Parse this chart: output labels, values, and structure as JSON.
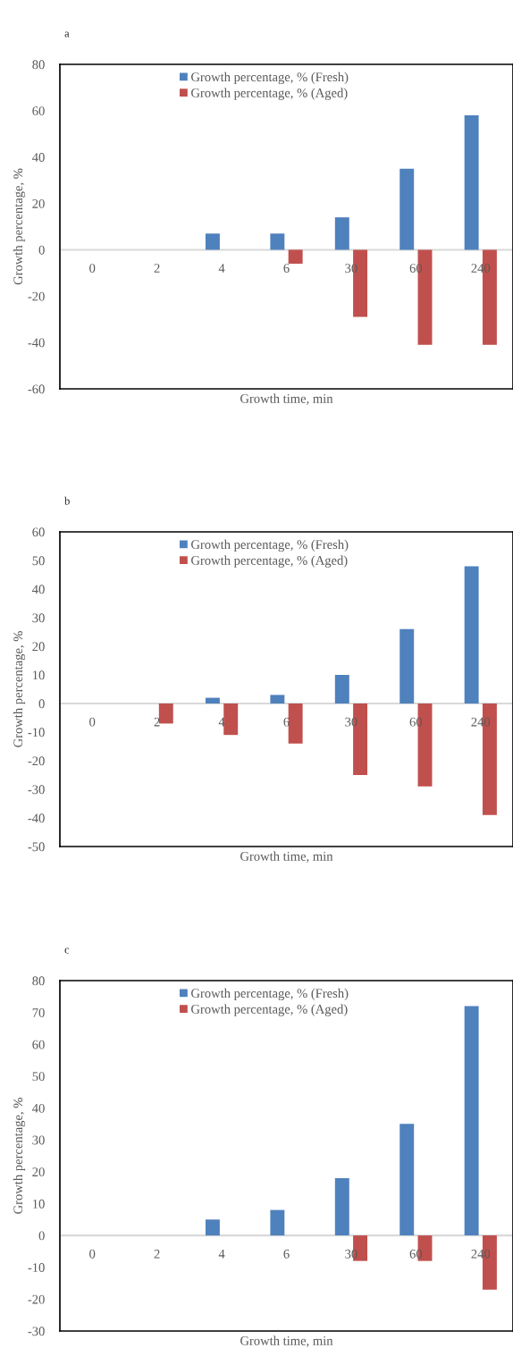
{
  "chart_data": [
    {
      "type": "bar",
      "title": "a",
      "xlabel": "Growth time, min",
      "ylabel": "Growth percentage, %",
      "categories": [
        "0",
        "2",
        "4",
        "6",
        "30",
        "60",
        "240"
      ],
      "ylim": [
        -60,
        80
      ],
      "yticks": [
        -60,
        -40,
        -20,
        0,
        20,
        40,
        60,
        80
      ],
      "legend": "top",
      "series": [
        {
          "name": "Growth percentage, % (Fresh)",
          "color": "#4f81bd",
          "values": [
            0,
            0,
            7,
            7,
            14,
            35,
            58
          ]
        },
        {
          "name": "Growth percentage, % (Aged)",
          "color": "#c0504d",
          "values": [
            0,
            0,
            0,
            -6,
            -29,
            -41,
            -41
          ]
        }
      ]
    },
    {
      "type": "bar",
      "title": "b",
      "xlabel": "Growth time, min",
      "ylabel": "Growth percentage, %",
      "categories": [
        "0",
        "2",
        "4",
        "6",
        "30",
        "60",
        "240"
      ],
      "ylim": [
        -50,
        60
      ],
      "yticks": [
        -50,
        -40,
        -30,
        -20,
        -10,
        0,
        10,
        20,
        30,
        40,
        50,
        60
      ],
      "legend": "top",
      "series": [
        {
          "name": "Growth percentage, % (Fresh)",
          "color": "#4f81bd",
          "values": [
            0,
            0,
            2,
            3,
            10,
            26,
            48
          ]
        },
        {
          "name": "Growth percentage, % (Aged)",
          "color": "#c0504d",
          "values": [
            0,
            -7,
            -11,
            -14,
            -25,
            -29,
            -39
          ]
        }
      ]
    },
    {
      "type": "bar",
      "title": "c",
      "xlabel": "Growth time, min",
      "ylabel": "Growth percentage, %",
      "categories": [
        "0",
        "2",
        "4",
        "6",
        "30",
        "60",
        "240"
      ],
      "ylim": [
        -30,
        80
      ],
      "yticks": [
        -30,
        -20,
        -10,
        0,
        10,
        20,
        30,
        40,
        50,
        60,
        70,
        80
      ],
      "legend": "top",
      "series": [
        {
          "name": "Growth percentage, % (Fresh)",
          "color": "#4f81bd",
          "values": [
            0,
            0,
            5,
            8,
            18,
            35,
            72
          ]
        },
        {
          "name": "Growth percentage, % (Aged)",
          "color": "#c0504d",
          "values": [
            0,
            0,
            0,
            0,
            -8,
            -8,
            -17
          ]
        }
      ]
    }
  ]
}
